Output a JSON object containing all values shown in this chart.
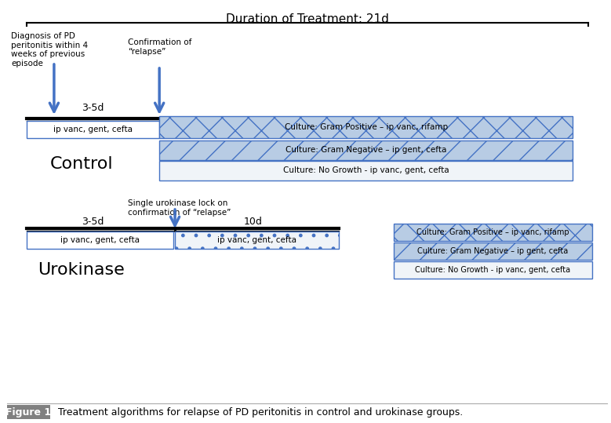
{
  "title_top": "Duration of Treatment: 21d",
  "figure_caption_label": "Figure 1",
  "figure_caption_text": "  Treatment algorithms for relapse of PD peritonitis in control and urokinase groups.",
  "control_label": "Control",
  "urokinase_label": "Urokinase",
  "control_annotation1": "Diagnosis of PD\nperitonitis within 4\nweeks of previous\nepisode",
  "control_annotation2": "Confirmation of\n“relapse”",
  "urokinase_annotation": "Single urokinase lock on\nconfirmation of “relapse”",
  "control_box1_text": "ip vanc, gent, cefta",
  "control_box2_text": "Culture: Gram Positive – ip vanc, rifamp",
  "control_box3_text": "Culture: Gram Negative – ip gent, cefta",
  "control_box4_text": "Culture: No Growth - ip vanc, gent, cefta",
  "uro_box1_text": "ip vanc, gent, cefta",
  "uro_box2_text": "ip vanc, gent, cefta",
  "uro_box3_text": "Culture: Gram Positive – ip vanc, rifamp",
  "uro_box4_text": "Culture: Gram Negative – ip gent, cefta",
  "uro_box5_text": "Culture: No Growth - ip vanc, gent, cefta",
  "label_3_5d": "3-5d",
  "label_10d": "10d",
  "bg_color": "#ffffff",
  "box_fill_light": "#dce6f1",
  "box_fill_pattern": "#b8cce4",
  "box_border": "#4472c4",
  "arrow_color": "#4472c4",
  "bar_color": "#000000",
  "caption_label_bg": "#808080",
  "caption_label_color": "#ffffff"
}
